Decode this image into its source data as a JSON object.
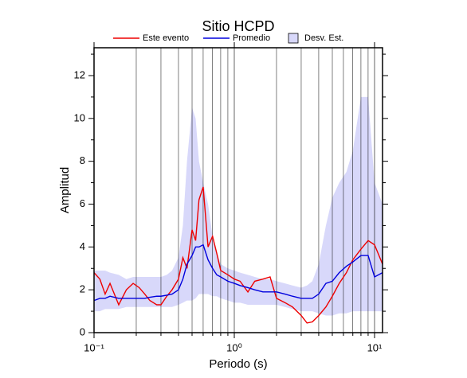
{
  "chart_data": {
    "type": "line",
    "title": "Sitio HCPD",
    "x_label": "Periodo (s)",
    "y_label": "Amplitud",
    "x_log": true,
    "grid": true,
    "legend": "top",
    "xlim": [
      0.1,
      11.4
    ],
    "ylim": [
      0,
      13.3
    ],
    "xticks": [
      {
        "value": 0.1,
        "label": "10⁻¹"
      },
      {
        "value": 1,
        "label": "10⁰"
      },
      {
        "value": 10,
        "label": "10¹"
      }
    ],
    "xminorticks": [
      0.2,
      0.3,
      0.4,
      0.5,
      0.6,
      0.7,
      0.8,
      0.9,
      2,
      3,
      4,
      5,
      6,
      7,
      8,
      9
    ],
    "yticks": [
      0,
      2,
      4,
      6,
      8,
      10,
      12
    ],
    "yminorticks": [
      1,
      3,
      5,
      7,
      9,
      11,
      13
    ],
    "x": [
      0.1,
      0.11,
      0.12,
      0.13,
      0.15,
      0.17,
      0.19,
      0.21,
      0.23,
      0.25,
      0.28,
      0.3,
      0.33,
      0.36,
      0.4,
      0.43,
      0.46,
      0.5,
      0.53,
      0.56,
      0.6,
      0.65,
      0.7,
      0.75,
      0.8,
      0.9,
      1.0,
      1.1,
      1.25,
      1.4,
      1.6,
      1.8,
      2.0,
      2.3,
      2.6,
      3.0,
      3.3,
      3.6,
      4.0,
      4.5,
      5.0,
      5.6,
      6.3,
      7.0,
      8.0,
      9.0,
      10,
      11.4
    ],
    "series": [
      {
        "name": "Este evento",
        "color": "#ee0000",
        "values": [
          2.8,
          2.5,
          1.8,
          2.3,
          1.3,
          2.0,
          2.3,
          2.1,
          1.8,
          1.5,
          1.3,
          1.3,
          1.7,
          2.0,
          2.5,
          3.5,
          3.0,
          4.8,
          4.3,
          6.2,
          6.8,
          4.0,
          4.5,
          3.7,
          2.9,
          2.7,
          2.5,
          2.4,
          1.9,
          2.4,
          2.5,
          2.6,
          1.6,
          1.4,
          1.2,
          0.8,
          0.45,
          0.5,
          0.8,
          1.2,
          1.7,
          2.3,
          2.8,
          3.4,
          3.9,
          4.3,
          4.1,
          3.2
        ]
      },
      {
        "name": "Promedio",
        "color": "#0000dd",
        "values": [
          1.5,
          1.6,
          1.6,
          1.7,
          1.6,
          1.6,
          1.6,
          1.6,
          1.6,
          1.65,
          1.7,
          1.7,
          1.75,
          1.8,
          2.0,
          2.5,
          3.2,
          3.6,
          4.0,
          4.0,
          4.1,
          3.4,
          3.0,
          2.7,
          2.6,
          2.4,
          2.3,
          2.2,
          2.1,
          2.0,
          1.9,
          1.9,
          1.9,
          1.8,
          1.7,
          1.6,
          1.6,
          1.6,
          1.8,
          2.3,
          2.4,
          2.8,
          3.1,
          3.3,
          3.6,
          3.6,
          2.6,
          2.8
        ]
      },
      {
        "name": "Desv. Est.",
        "color": "#d8d8fa",
        "upper": [
          2.9,
          2.9,
          2.9,
          2.8,
          2.7,
          2.5,
          2.6,
          2.6,
          2.6,
          2.6,
          2.6,
          2.6,
          2.7,
          2.9,
          3.5,
          5.0,
          8.0,
          10.5,
          10.0,
          8.0,
          7.0,
          6.0,
          4.5,
          3.8,
          3.2,
          3.0,
          2.9,
          2.8,
          2.7,
          2.6,
          2.5,
          2.5,
          2.4,
          2.3,
          2.2,
          2.1,
          2.2,
          2.4,
          3.2,
          5.0,
          6.3,
          7.0,
          7.5,
          8.5,
          11.0,
          11.0,
          7.0,
          6.0
        ],
        "lower": [
          1.0,
          1.0,
          1.1,
          1.1,
          1.1,
          1.2,
          1.2,
          1.2,
          1.2,
          1.2,
          1.2,
          1.2,
          1.2,
          1.2,
          1.3,
          1.4,
          1.5,
          1.5,
          1.6,
          1.8,
          1.8,
          1.8,
          1.7,
          1.7,
          1.6,
          1.5,
          1.4,
          1.4,
          1.3,
          1.3,
          1.3,
          1.3,
          1.3,
          1.2,
          1.1,
          1.0,
          1.0,
          1.0,
          0.9,
          0.8,
          0.8,
          0.9,
          0.9,
          1.0,
          1.0,
          1.0,
          1.0,
          1.0
        ]
      }
    ]
  }
}
